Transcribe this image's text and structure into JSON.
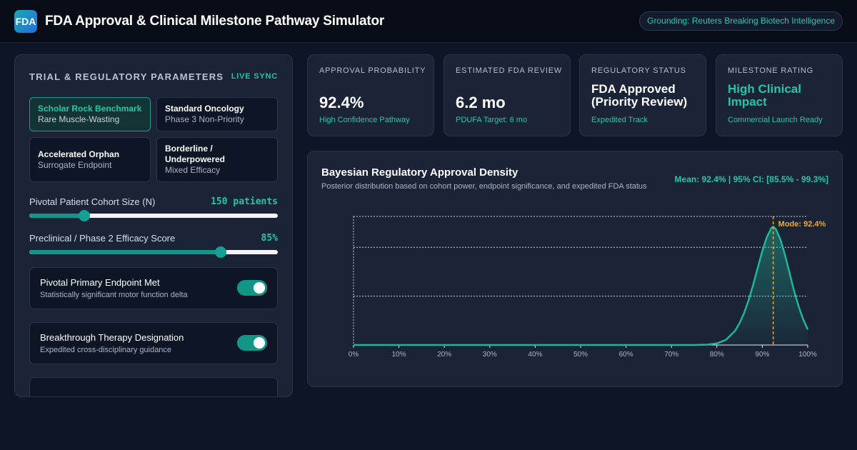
{
  "header": {
    "logo_text": "FDA",
    "title": "FDA Approval & Clinical Milestone Pathway Simulator",
    "grounding": "Grounding: Reuters Breaking Biotech Intelligence"
  },
  "params": {
    "title": "TRIAL & REGULATORY PARAMETERS",
    "live_sync": "LIVE SYNC",
    "presets": [
      {
        "title": "Scholar Rock Benchmark",
        "subtitle": "Rare Muscle-Wasting",
        "active": true
      },
      {
        "title": "Standard Oncology",
        "subtitle": "Phase 3 Non-Priority",
        "active": false
      },
      {
        "title": "Accelerated Orphan",
        "subtitle": "Surrogate Endpoint",
        "active": false
      },
      {
        "title": "Borderline / Underpowered",
        "subtitle": "Mixed Efficacy",
        "active": false
      }
    ],
    "cohort": {
      "label": "Pivotal Patient Cohort Size (N)",
      "value_text": "150 patients",
      "fraction": 0.22
    },
    "efficacy": {
      "label": "Preclinical / Phase 2 Efficacy Score",
      "value_text": "85%",
      "fraction": 0.77
    },
    "toggles": [
      {
        "title": "Pivotal Primary Endpoint Met",
        "subtitle": "Statistically significant motor function delta",
        "on": true
      },
      {
        "title": "Breakthrough Therapy Designation",
        "subtitle": "Expedited cross-disciplinary guidance",
        "on": true
      }
    ]
  },
  "stats": [
    {
      "label": "Approval Probability",
      "value": "92.4%",
      "sub": "High Confidence Pathway"
    },
    {
      "label": "Estimated FDA Review",
      "value": "6.2 mo",
      "sub": "PDUFA Target: 6 mo"
    },
    {
      "label": "Regulatory Status",
      "value": "FDA Approved (Priority Review)",
      "sub": "Expedited Track"
    },
    {
      "label": "Milestone Rating",
      "value": "High Clinical Impact",
      "sub": "Commercial Launch Ready"
    }
  ],
  "density": {
    "title": "Bayesian Regulatory Approval Density",
    "subtitle": "Posterior distribution based on cohort power, endpoint significance, and expedited FDA status",
    "stats_text": "Mean: 92.4% | 95% CI: [85.5% - 99.3%]",
    "mode_label": "Mode: 92.4%",
    "colors": {
      "curve": "#1fb59f",
      "mode": "#f0a830",
      "axis": "#e6edf6"
    }
  },
  "chart_data": {
    "type": "area",
    "title": "Bayesian Regulatory Approval Density",
    "xlabel": "",
    "ylabel": "",
    "x_ticks": [
      "0%",
      "10%",
      "20%",
      "30%",
      "40%",
      "50%",
      "60%",
      "70%",
      "80%",
      "90%",
      "100%"
    ],
    "xlim": [
      0,
      100
    ],
    "ylim": [
      0,
      1.0
    ],
    "grid": true,
    "mode": 92.4,
    "mean": 92.4,
    "ci": [
      85.5,
      99.3
    ],
    "series": [
      {
        "x": [
          0,
          10,
          20,
          30,
          40,
          50,
          60,
          70,
          75,
          78,
          80,
          82,
          84,
          85,
          86,
          87,
          88,
          89,
          90,
          91,
          92,
          92.4,
          93,
          94,
          95,
          96,
          97,
          98,
          99,
          100
        ],
        "values": [
          0,
          0,
          0,
          0,
          0,
          0,
          0,
          0,
          0,
          0.003,
          0.012,
          0.04,
          0.11,
          0.17,
          0.25,
          0.35,
          0.47,
          0.6,
          0.73,
          0.84,
          0.91,
          0.92,
          0.9,
          0.82,
          0.7,
          0.56,
          0.42,
          0.3,
          0.2,
          0.12
        ]
      }
    ]
  }
}
